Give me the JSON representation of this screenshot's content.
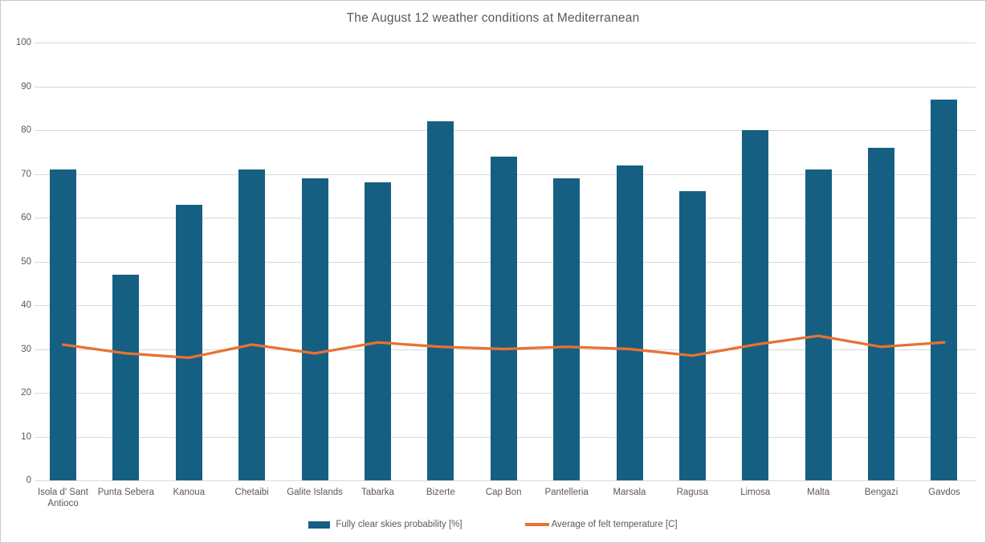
{
  "chart": {
    "title": "The August 12 weather conditions at Mediterranean",
    "legend": {
      "bars_label": "Fully clear skies probability [%]",
      "line_label": "Average of felt temperature [C]"
    }
  },
  "colors": {
    "bar_series": "#156082",
    "line_series": "#E97132",
    "gridline": "#d9d9d9",
    "text": "#595959"
  },
  "chart_data": {
    "type": "bar",
    "title": "The August 12 weather conditions at Mediterranean",
    "categories": [
      "Isola d' Sant Antioco",
      "Punta Sebera",
      "Kanoua",
      "Chetaibi",
      "Galite Islands",
      "Tabarka",
      "Bizerte",
      "Cap Bon",
      "Pantelleria",
      "Marsala",
      "Ragusa",
      "Limosa",
      "Malta",
      "Bengazi",
      "Gavdos"
    ],
    "series": [
      {
        "name": "Fully clear skies probability [%]",
        "type": "bar",
        "color": "#156082",
        "values": [
          71,
          47,
          63,
          71,
          69,
          68,
          82,
          74,
          69,
          72,
          66,
          80,
          71,
          76,
          87
        ]
      },
      {
        "name": "Average of felt temperature [C]",
        "type": "line",
        "color": "#E97132",
        "values": [
          31,
          29,
          28,
          31,
          29,
          31.5,
          30.5,
          30,
          30.5,
          30,
          28.5,
          31,
          33,
          30.5,
          31.5
        ]
      }
    ],
    "xlabel": "",
    "ylabel": "",
    "ylim": [
      0,
      100
    ],
    "ytick_interval": 10,
    "grid": true,
    "legend_position": "bottom"
  }
}
